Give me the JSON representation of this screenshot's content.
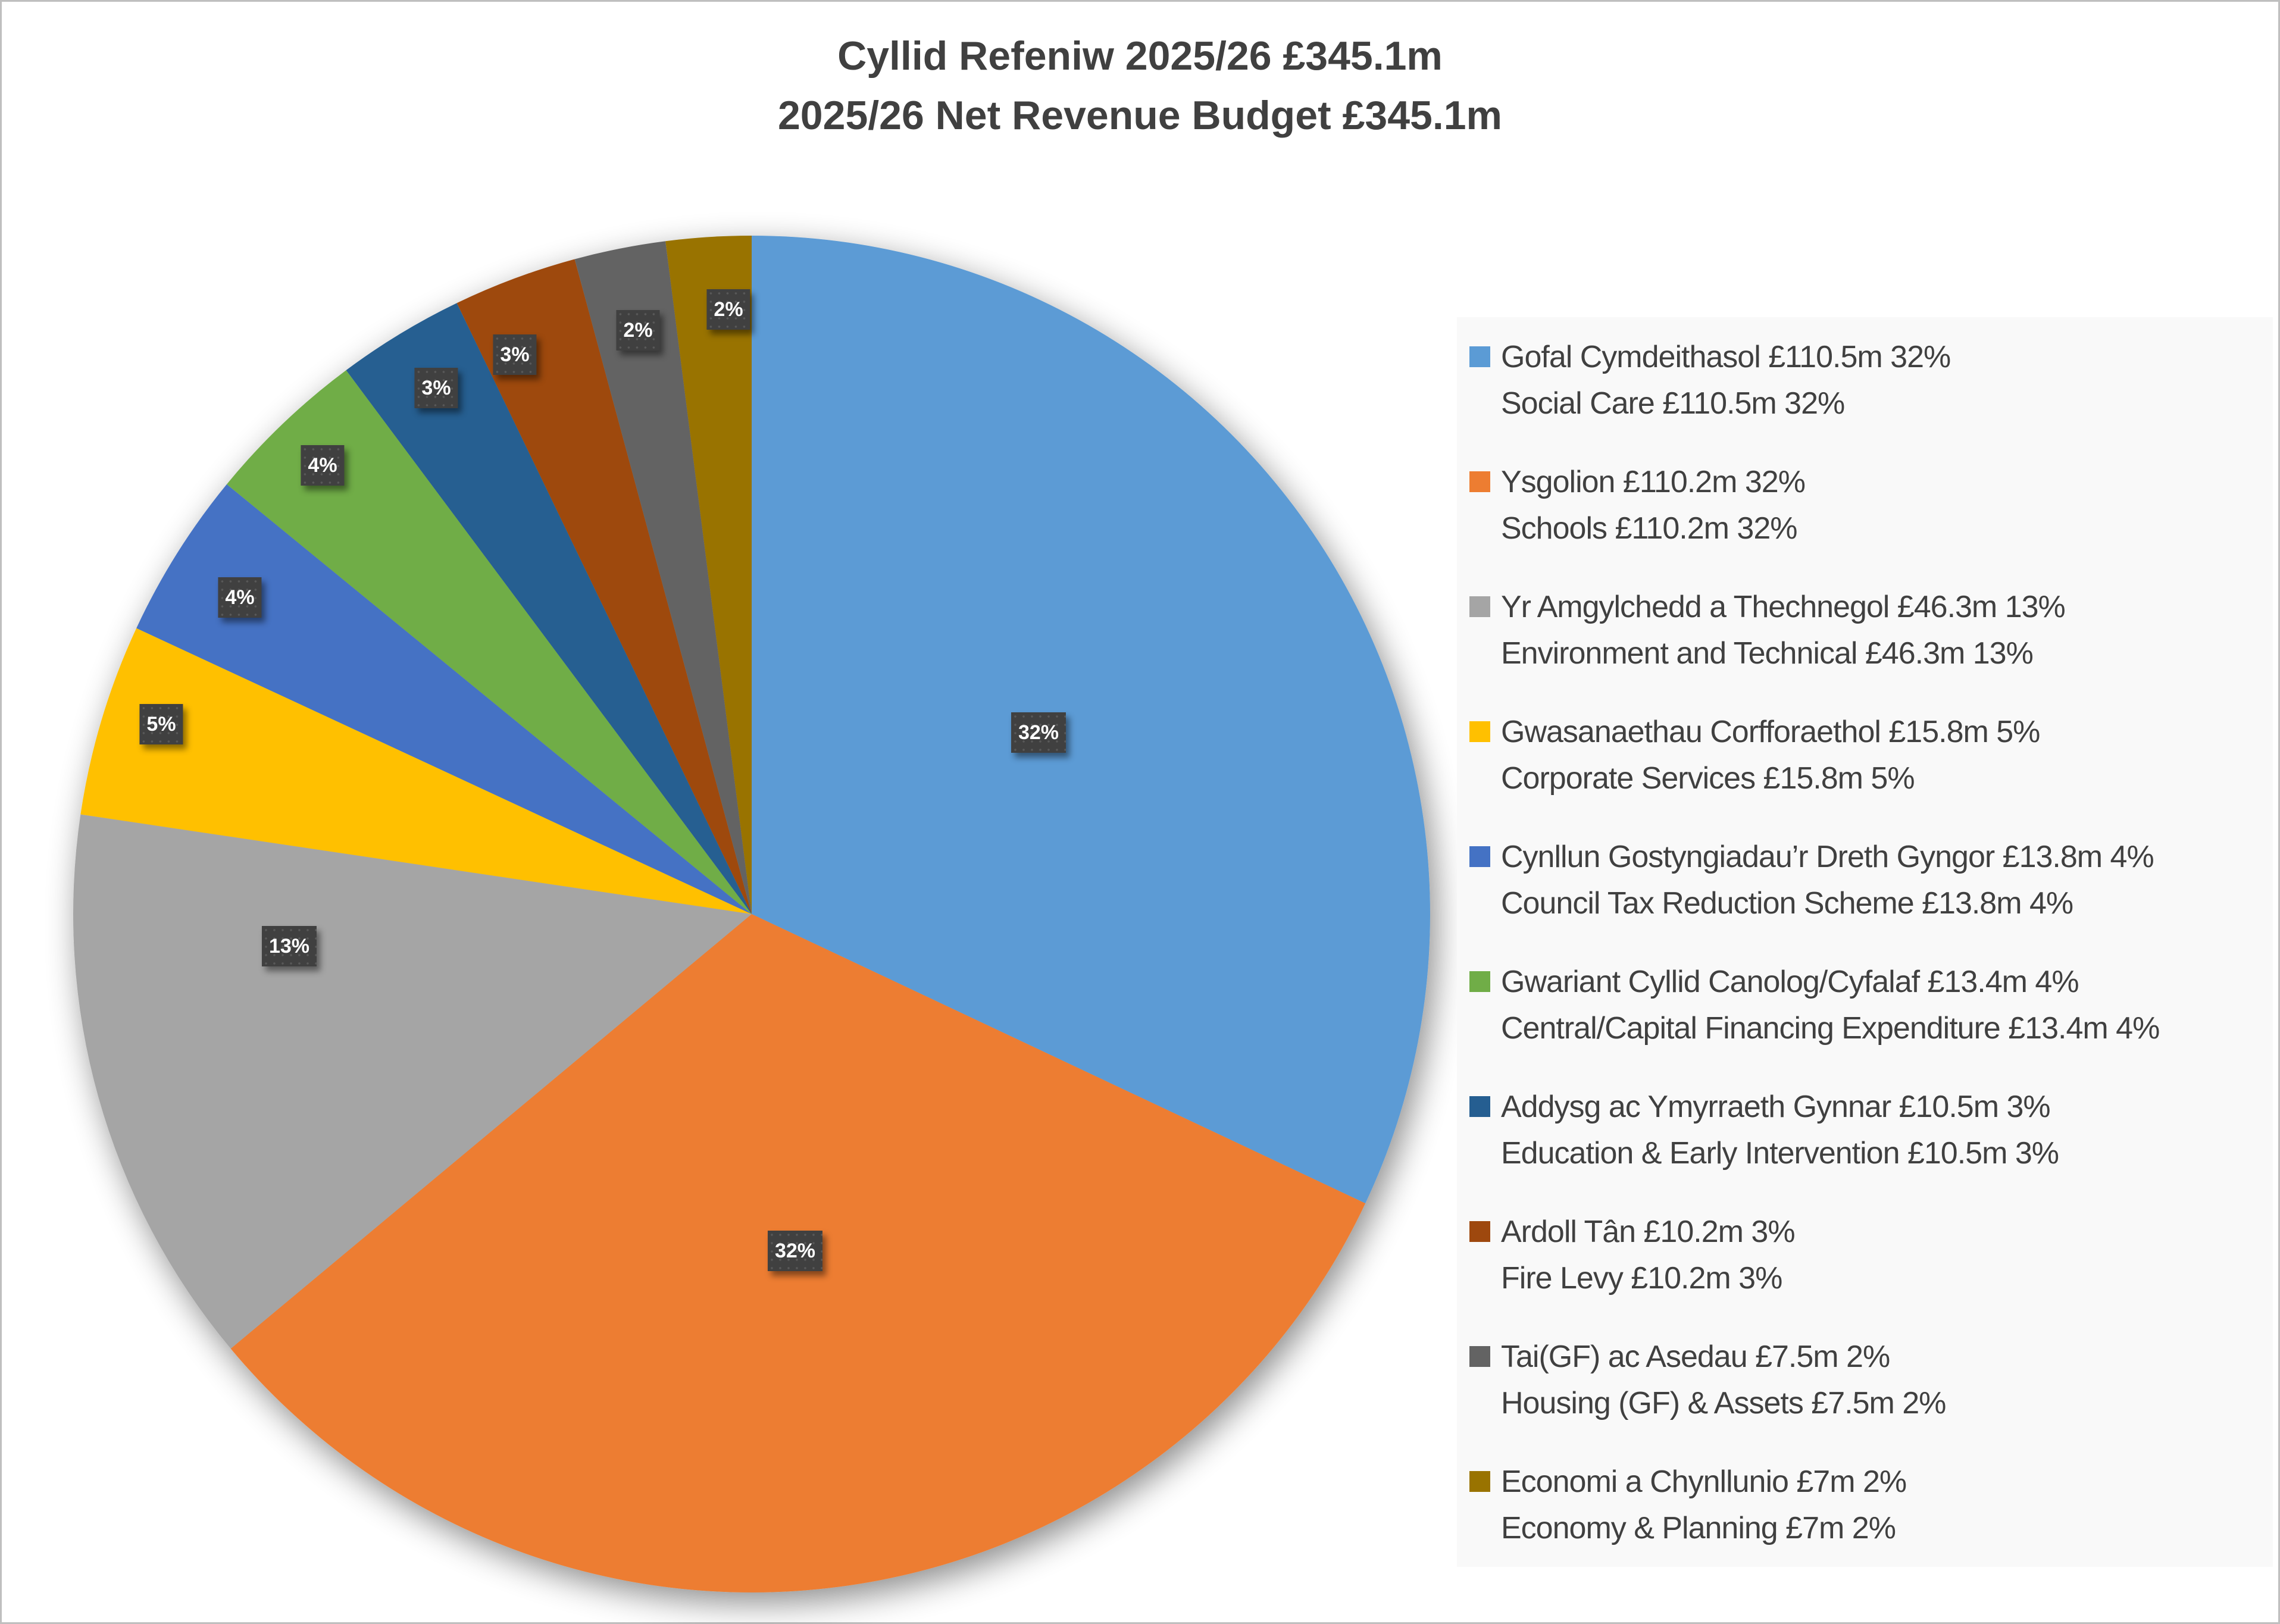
{
  "chart": {
    "title_line1": "Cyllid Refeniw 2025/26 £345.1m",
    "title_line2": "2025/26 Net Revenue Budget £345.1m",
    "data_label_color": "#404040"
  },
  "legend": {
    "items": [
      {
        "line1": "Gofal Cymdeithasol  £110.5m 32%",
        "line2": "Social Care £110.5m 32%",
        "color": "#5B9BD5"
      },
      {
        "line1": "Ysgolion £110.2m 32%",
        "line2": "Schools £110.2m 32%",
        "color": "#ED7D31"
      },
      {
        "line1": "Yr Amgylchedd a Thechnegol £46.3m 13%",
        "line2": "Environment and Technical £46.3m 13%",
        "color": "#A5A5A5"
      },
      {
        "line1": "Gwasanaethau Corfforaethol £15.8m 5%",
        "line2": "Corporate Services £15.8m 5%",
        "color": "#FFC000"
      },
      {
        "line1": "Cynllun Gostyngiadau’r Dreth Gyngor £13.8m 4%",
        "line2": "Council Tax Reduction Scheme £13.8m 4%",
        "color": "#4472C4"
      },
      {
        "line1": "Gwariant Cyllid Canolog/Cyfalaf £13.4m 4%",
        "line2": "Central/Capital Financing Expenditure £13.4m 4%",
        "color": "#70AD47"
      },
      {
        "line1": "Addysg ac Ymyrraeth Gynnar £10.5m 3%",
        "line2": "Education & Early Intervention £10.5m 3%",
        "color": "#255E91"
      },
      {
        "line1": "Ardoll Tân £10.2m 3%",
        "line2": "Fire Levy £10.2m 3%",
        "color": "#9E480E"
      },
      {
        "line1": "Tai(GF) ac Asedau £7.5m 2%",
        "line2": "Housing (GF) & Assets £7.5m 2%",
        "color": "#636363"
      },
      {
        "line1": "Economi a Chynllunio £7m 2%",
        "line2": "Economy & Planning £7m 2%",
        "color": "#997300"
      }
    ]
  },
  "chart_data": {
    "type": "pie",
    "title": "Cyllid Refeniw 2025/26 £345.1m / 2025/26 Net Revenue Budget £345.1m",
    "total_label": "£345.1m",
    "unit": "£m",
    "categories": [
      "Gofal Cymdeithasol / Social Care",
      "Ysgolion / Schools",
      "Yr Amgylchedd a Thechnegol / Environment and Technical",
      "Gwasanaethau Corfforaethol / Corporate Services",
      "Cynllun Gostyngiadau’r Dreth Gyngor / Council Tax Reduction Scheme",
      "Gwariant Cyllid Canolog/Cyfalaf / Central/Capital Financing Expenditure",
      "Addysg ac Ymyrraeth Gynnar / Education & Early Intervention",
      "Ardoll Tân / Fire Levy",
      "Tai(GF) ac Asedau / Housing (GF) & Assets",
      "Economi a Chynllunio / Economy & Planning"
    ],
    "values": [
      110.5,
      110.2,
      46.3,
      15.8,
      13.8,
      13.4,
      10.5,
      10.2,
      7.5,
      7.0
    ],
    "percent_labels": [
      "32%",
      "32%",
      "13%",
      "5%",
      "4%",
      "4%",
      "3%",
      "3%",
      "2%",
      "2%"
    ],
    "colors": [
      "#5B9BD5",
      "#ED7D31",
      "#A5A5A5",
      "#FFC000",
      "#4472C4",
      "#70AD47",
      "#255E91",
      "#9E480E",
      "#636363",
      "#997300"
    ],
    "start_angle_deg": 0,
    "direction": "clockwise",
    "legend_position": "right",
    "label_positions": [
      [
        1745,
        1231
      ],
      [
        1336,
        2102
      ],
      [
        486,
        1590
      ],
      [
        271,
        1217
      ],
      [
        403,
        1004
      ],
      [
        542,
        782
      ],
      [
        733,
        652
      ],
      [
        865,
        596
      ],
      [
        1072,
        555
      ],
      [
        1224,
        520
      ]
    ]
  }
}
